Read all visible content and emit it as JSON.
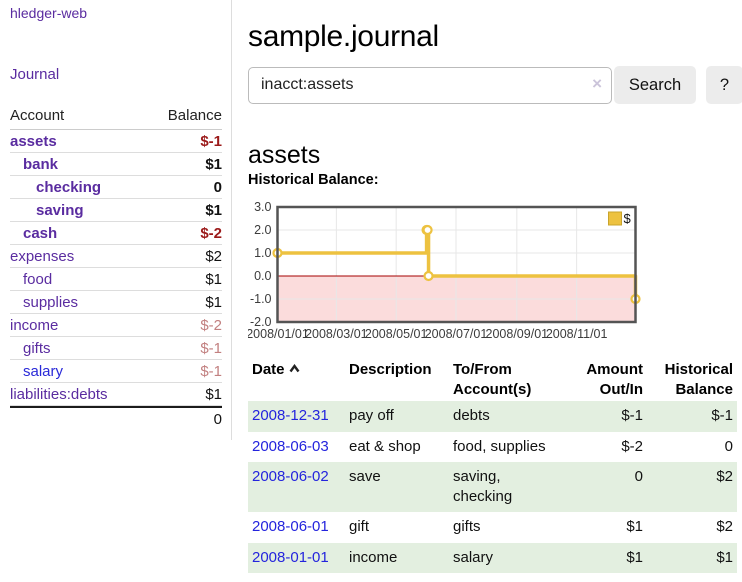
{
  "sidebar": {
    "brand": "hledger-web",
    "nav": {
      "journal": "Journal"
    },
    "accounts_table": {
      "col_account": "Account",
      "col_balance": "Balance",
      "rows": [
        {
          "account": "assets",
          "balance": "$-1",
          "indent": 0,
          "bold": true,
          "negative": true
        },
        {
          "account": "bank",
          "balance": "$1",
          "indent": 1,
          "bold": true,
          "negative": false
        },
        {
          "account": "checking",
          "balance": "0",
          "indent": 2,
          "bold": true,
          "negative": false
        },
        {
          "account": "saving",
          "balance": "$1",
          "indent": 2,
          "bold": true,
          "negative": false
        },
        {
          "account": "cash",
          "balance": "$-2",
          "indent": 1,
          "bold": true,
          "negative": true
        },
        {
          "account": "expenses",
          "balance": "$2",
          "indent": 0,
          "bold": false,
          "negative": false
        },
        {
          "account": "food",
          "balance": "$1",
          "indent": 1,
          "bold": false,
          "negative": false
        },
        {
          "account": "supplies",
          "balance": "$1",
          "indent": 1,
          "bold": false,
          "negative": false
        },
        {
          "account": "income",
          "balance": "$-2",
          "indent": 0,
          "bold": false,
          "negative": true
        },
        {
          "account": "gifts",
          "balance": "$-1",
          "indent": 1,
          "bold": false,
          "negative": true
        },
        {
          "account": "salary",
          "balance": "$-1",
          "indent": 1,
          "bold": false,
          "negative": true,
          "link_blue": true
        },
        {
          "account": "liabilities:debts",
          "balance": "$1",
          "indent": 0,
          "bold": false,
          "negative": false
        }
      ],
      "total": "0"
    }
  },
  "header": {
    "title": "sample.journal"
  },
  "search": {
    "value": "inacct:assets",
    "clear_icon": "×",
    "button_label": "Search",
    "help_label": "?"
  },
  "account_page": {
    "heading": "assets"
  },
  "chart_data": {
    "type": "line",
    "title": "Historical Balance:",
    "series": [
      {
        "name": "$",
        "step": true,
        "points": [
          [
            "2008-01-01",
            1
          ],
          [
            "2008-06-01",
            2
          ],
          [
            "2008-06-02",
            2
          ],
          [
            "2008-06-03",
            0
          ],
          [
            "2008-12-31",
            -1
          ]
        ]
      }
    ],
    "xlim": [
      "2008-01-01",
      "2008-12-31"
    ],
    "ylim": [
      -2,
      3
    ],
    "yticks": [
      3,
      2,
      1,
      0,
      -1,
      -2
    ],
    "xticks": [
      {
        "date": "2008-01-01",
        "label": "2008/01/01"
      },
      {
        "date": "2008-03-01",
        "label": "2008/03/01"
      },
      {
        "date": "2008-05-01",
        "label": "2008/05/01"
      },
      {
        "date": "2008-07-01",
        "label": "2008/07/01"
      },
      {
        "date": "2008-09-01",
        "label": "2008/09/01"
      },
      {
        "date": "2008-11-01",
        "label": "2008/11/01"
      }
    ],
    "grid": true,
    "legend_position": "top-right",
    "colors": {
      "line": "#edc240",
      "legend_border": "#c9a42c",
      "marker_fill": "#ffffff",
      "negative_fill": "#fbdcdc",
      "zero_line": "#a40000",
      "grid": "#e7e7e7",
      "border": "#545454"
    }
  },
  "register": {
    "columns": [
      {
        "label": "Date"
      },
      {
        "label": "Description"
      },
      {
        "label": "To/From",
        "label2": "Account(s)"
      },
      {
        "label": "Amount",
        "label2": "Out/In"
      },
      {
        "label": "Historical",
        "label2": "Balance"
      }
    ],
    "rows": [
      {
        "date": "2008-12-31",
        "description": "pay off",
        "accounts": "debts",
        "amount": "$-1",
        "amount_negative": true,
        "balance": "$-1",
        "balance_negative": true
      },
      {
        "date": "2008-06-03",
        "description": "eat & shop",
        "accounts": "food, supplies",
        "amount": "$-2",
        "amount_negative": true,
        "balance": "0",
        "balance_negative": false
      },
      {
        "date": "2008-06-02",
        "description": "save",
        "accounts": "saving, checking",
        "amount": "0",
        "amount_negative": false,
        "balance": "$2",
        "balance_negative": false
      },
      {
        "date": "2008-06-01",
        "description": "gift",
        "accounts": "gifts",
        "amount": "$1",
        "amount_negative": false,
        "balance": "$2",
        "balance_negative": false
      },
      {
        "date": "2008-01-01",
        "description": "income",
        "accounts": "salary",
        "amount": "$1",
        "amount_negative": false,
        "balance": "$1",
        "balance_negative": false
      }
    ]
  }
}
